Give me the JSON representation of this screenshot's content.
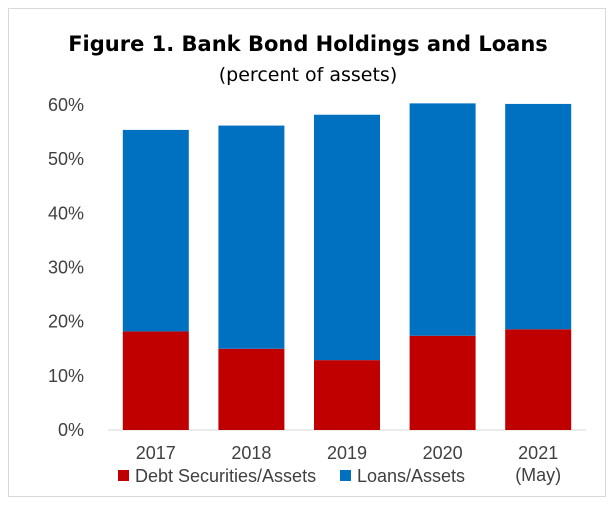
{
  "chart_data": {
    "type": "bar",
    "stacked": true,
    "title": "Figure 1. Bank Bond Holdings and Loans",
    "subtitle": "(percent of assets)",
    "categories": [
      "2017",
      "2018",
      "2019",
      "2020",
      "2021"
    ],
    "category_sublabels": [
      "",
      "",
      "",
      "",
      "(May)"
    ],
    "series": [
      {
        "name": "Debt Securities/Assets",
        "color": "#c00000",
        "values": [
          18.2,
          15.0,
          12.9,
          17.4,
          18.6
        ]
      },
      {
        "name": "Loans/Assets",
        "color": "#0070c0",
        "values": [
          37.2,
          41.2,
          45.3,
          42.9,
          41.6
        ]
      }
    ],
    "ylim": [
      0,
      60
    ],
    "yticks": [
      0,
      10,
      20,
      30,
      40,
      50,
      60
    ],
    "ytick_labels": [
      "0%",
      "10%",
      "20%",
      "30%",
      "40%",
      "50%",
      "60%"
    ],
    "xlabel": "",
    "ylabel": "",
    "grid": false,
    "legend_position": "bottom"
  }
}
